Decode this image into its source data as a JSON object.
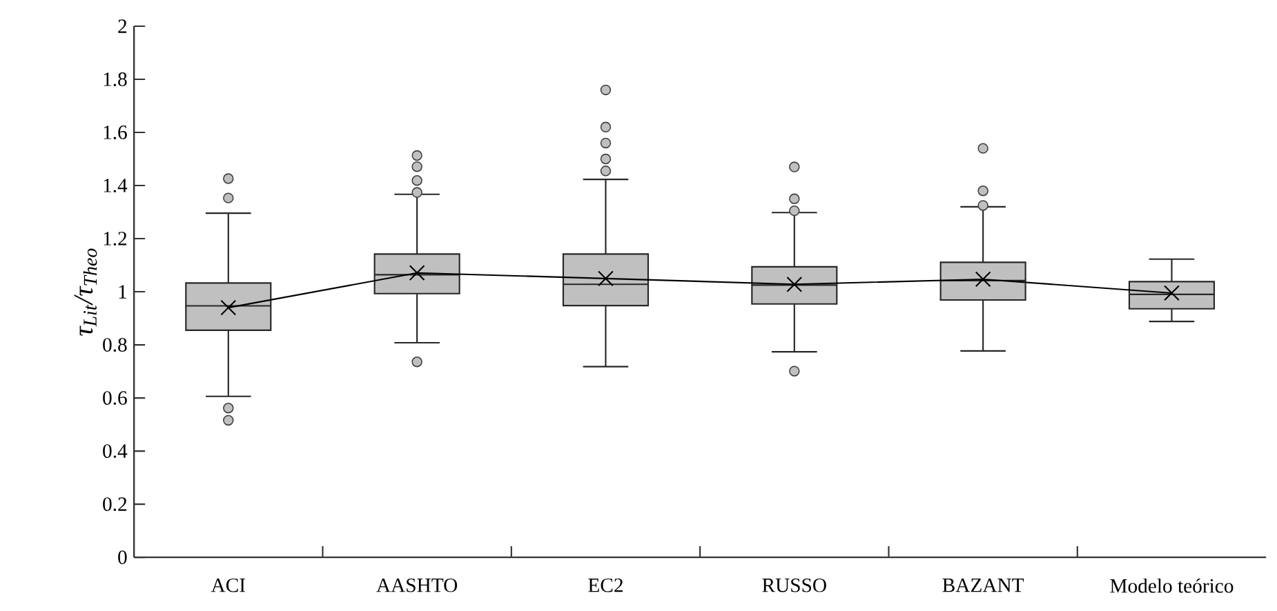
{
  "chart_data": {
    "type": "box",
    "ylabel": "τ$_{Lit}$/τ$_{Theo}$",
    "categories": [
      "ACI",
      "AASHTO",
      "EC2",
      "RUSSO",
      "BAZANT",
      "Modelo teórico"
    ],
    "series": [
      {
        "color": "#c0c0c0",
        "boxes": [
          {
            "low": 0.606,
            "q1": 0.855,
            "median": 0.947,
            "q3": 1.033,
            "high": 1.296,
            "outliers": [
              1.426,
              1.353,
              0.562,
              0.516
            ]
          },
          {
            "low": 0.808,
            "q1": 0.993,
            "median": 1.064,
            "q3": 1.142,
            "high": 1.367,
            "outliers": [
              1.513,
              1.471,
              1.419,
              1.374,
              0.736
            ]
          },
          {
            "low": 0.718,
            "q1": 0.948,
            "median": 1.028,
            "q3": 1.142,
            "high": 1.423,
            "outliers": [
              1.76,
              1.62,
              1.56,
              1.5,
              1.455
            ]
          },
          {
            "low": 0.774,
            "q1": 0.954,
            "median": 1.025,
            "q3": 1.094,
            "high": 1.298,
            "outliers": [
              1.47,
              1.35,
              1.305,
              0.701
            ]
          },
          {
            "low": 0.777,
            "q1": 0.969,
            "median": 1.042,
            "q3": 1.111,
            "high": 1.32,
            "outliers": [
              1.54,
              1.38,
              1.325
            ]
          },
          {
            "low": 0.888,
            "q1": 0.936,
            "median": 0.99,
            "q3": 1.038,
            "high": 1.123
          }
        ]
      },
      {
        "type": "line",
        "color": "#000000",
        "values": [
          0.94,
          1.071,
          1.05,
          1.028,
          1.047,
          0.995
        ]
      }
    ],
    "marker": "cross",
    "ylim": [
      0,
      2
    ],
    "yticks": [
      0,
      0.2,
      0.4,
      0.6,
      0.8,
      1,
      1.2,
      1.4,
      1.6,
      1.8,
      2
    ]
  }
}
